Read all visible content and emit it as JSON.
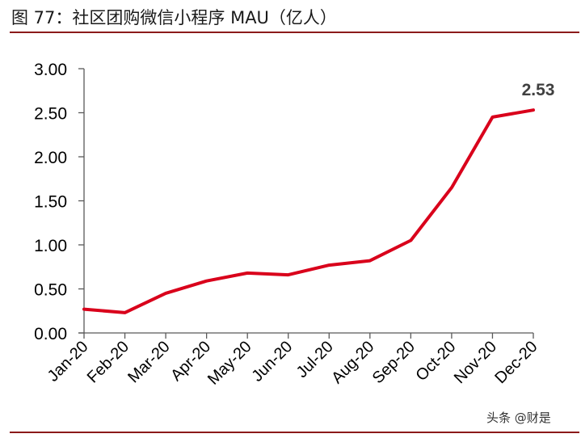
{
  "header": {
    "title": "图 77：社区团购微信小程序 MAU（亿人）"
  },
  "footer": {
    "watermark": "头条 @财是"
  },
  "colors": {
    "rule": "#8b1a1a",
    "series": "#d9001b",
    "axis": "#595959"
  },
  "chart_data": {
    "type": "line",
    "title": "图 77：社区团购微信小程序 MAU（亿人）",
    "xlabel": "",
    "ylabel": "",
    "categories": [
      "Jan-20",
      "Feb-20",
      "Mar-20",
      "Apr-20",
      "May-20",
      "Jun-20",
      "Jul-20",
      "Aug-20",
      "Sep-20",
      "Oct-20",
      "Nov-20",
      "Dec-20"
    ],
    "series": [
      {
        "name": "社区团购微信小程序 MAU（亿人）",
        "values": [
          0.27,
          0.23,
          0.45,
          0.59,
          0.68,
          0.66,
          0.77,
          0.82,
          1.05,
          1.65,
          2.45,
          2.53
        ]
      }
    ],
    "ylim": [
      0,
      3
    ],
    "yticks": [
      "0.00",
      "0.50",
      "1.00",
      "1.50",
      "2.00",
      "2.50",
      "3.00"
    ],
    "annotations": [
      {
        "category": "Dec-20",
        "text": "2.53"
      }
    ],
    "grid": false,
    "legend": "none"
  }
}
